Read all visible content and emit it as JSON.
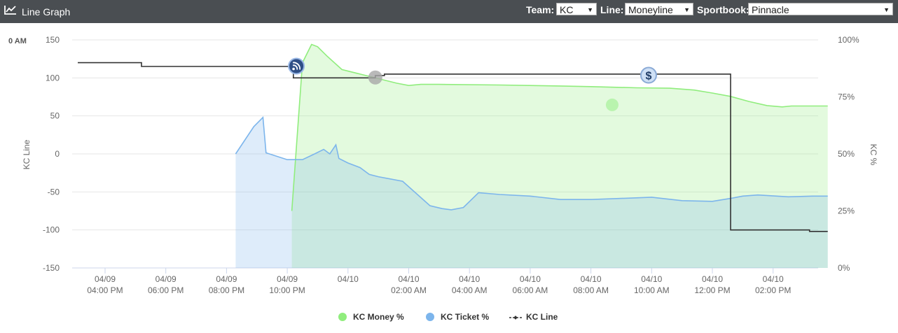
{
  "header": {
    "title": "Line Graph",
    "title_icon": "line-chart-icon",
    "team_label": "Team:",
    "team_value": "KC",
    "line_label": "Line:",
    "line_value": "Moneyline",
    "sportsbook_label": "Sportbook:",
    "sportsbook_value": "Pinnacle"
  },
  "corner_label": "0 AM",
  "chart_data": {
    "type": "line",
    "ylabel_left": "KC Line",
    "ylabel_right": "KC %",
    "y_left_ticks": [
      "150",
      "100",
      "50",
      "0",
      "-50",
      "-100",
      "-150"
    ],
    "y_right_ticks": [
      "100%",
      "75%",
      "50%",
      "25%",
      "0%"
    ],
    "ylim_left": [
      -150,
      150
    ],
    "ylim_right": [
      0,
      100
    ],
    "x_ticks": [
      {
        "date": "04/09",
        "time": "04:00 PM"
      },
      {
        "date": "04/09",
        "time": "06:00 PM"
      },
      {
        "date": "04/09",
        "time": "08:00 PM"
      },
      {
        "date": "04/09",
        "time": "10:00 PM"
      },
      {
        "date": "04/10",
        "time": ""
      },
      {
        "date": "04/10",
        "time": "02:00 AM"
      },
      {
        "date": "04/10",
        "time": "04:00 AM"
      },
      {
        "date": "04/10",
        "time": "06:00 AM"
      },
      {
        "date": "04/10",
        "time": "08:00 AM"
      },
      {
        "date": "04/10",
        "time": "10:00 AM"
      },
      {
        "date": "04/10",
        "time": "12:00 PM"
      },
      {
        "date": "04/10",
        "time": "02:00 PM"
      }
    ],
    "x_unit": "hours from 04/09 04:00 PM",
    "grid": true,
    "legend_position": "bottom-center",
    "colors": {
      "money": "#90ed7d",
      "ticket": "#7cb5ec",
      "line": "#333333"
    },
    "series": [
      {
        "name": "KC Line",
        "axis": "left",
        "step": true,
        "points": [
          [
            -0.9,
            120
          ],
          [
            1.2,
            120
          ],
          [
            1.2,
            115
          ],
          [
            6.2,
            115
          ],
          [
            6.2,
            100
          ],
          [
            8.9,
            100
          ],
          [
            8.9,
            103
          ],
          [
            9.2,
            103
          ],
          [
            9.2,
            105
          ],
          [
            20.6,
            105
          ],
          [
            20.6,
            -100
          ],
          [
            23.2,
            -100
          ],
          [
            23.2,
            -102
          ],
          [
            23.8,
            -102
          ]
        ]
      },
      {
        "name": "KC Money %",
        "axis": "right",
        "points": [
          [
            6.15,
            25
          ],
          [
            6.5,
            90
          ],
          [
            6.8,
            98
          ],
          [
            7.0,
            97
          ],
          [
            7.3,
            93
          ],
          [
            7.8,
            87
          ],
          [
            8.4,
            85
          ],
          [
            9.0,
            83
          ],
          [
            9.6,
            81
          ],
          [
            10.0,
            80
          ],
          [
            10.4,
            80.5
          ],
          [
            11.0,
            80.5
          ],
          [
            13.0,
            80.2
          ],
          [
            15.0,
            79.8
          ],
          [
            16.0,
            79.5
          ],
          [
            17.5,
            79
          ],
          [
            18.6,
            78.8
          ],
          [
            19.4,
            78
          ],
          [
            20.0,
            76.7
          ],
          [
            20.6,
            75.2
          ],
          [
            21.2,
            73
          ],
          [
            21.8,
            71.2
          ],
          [
            22.3,
            70.6
          ],
          [
            22.6,
            71
          ],
          [
            23.8,
            71
          ]
        ]
      },
      {
        "name": "KC Ticket %",
        "axis": "right",
        "points": [
          [
            4.3,
            50
          ],
          [
            4.9,
            62
          ],
          [
            5.2,
            66
          ],
          [
            5.3,
            50.5
          ],
          [
            6.0,
            47.5
          ],
          [
            6.5,
            47.5
          ],
          [
            6.9,
            50
          ],
          [
            7.2,
            52
          ],
          [
            7.4,
            50
          ],
          [
            7.6,
            54
          ],
          [
            7.7,
            48
          ],
          [
            8.0,
            46
          ],
          [
            8.4,
            44
          ],
          [
            8.7,
            41
          ],
          [
            9.0,
            40
          ],
          [
            9.8,
            38
          ],
          [
            10.7,
            27.3
          ],
          [
            11.1,
            26
          ],
          [
            11.4,
            25.5
          ],
          [
            11.8,
            26.5
          ],
          [
            12.3,
            33
          ],
          [
            13.0,
            32.2
          ],
          [
            14.0,
            31.5
          ],
          [
            15.0,
            30
          ],
          [
            16.0,
            30
          ],
          [
            17.0,
            30.5
          ],
          [
            18.0,
            31
          ],
          [
            19.0,
            29.5
          ],
          [
            20.0,
            29.2
          ],
          [
            20.6,
            30.5
          ],
          [
            21.0,
            31.5
          ],
          [
            21.5,
            32
          ],
          [
            22.5,
            31.2
          ],
          [
            23.3,
            31.5
          ],
          [
            23.8,
            31.5
          ]
        ]
      }
    ],
    "markers": [
      {
        "name": "rss-marker",
        "x": 6.3,
        "y": 88.5,
        "icon": "rss-icon"
      },
      {
        "name": "gray-marker",
        "x": 8.9,
        "y": 83.5,
        "icon": "circle-icon"
      },
      {
        "name": "dollar-marker",
        "x": 17.9,
        "y": 84.5,
        "icon": "dollar-icon"
      },
      {
        "name": "money-halo-marker",
        "x": 16.7,
        "y": 71.5,
        "icon": "circle-icon"
      }
    ]
  },
  "legend": [
    {
      "label": "KC Money %",
      "icon": "green-dot-icon",
      "color": "#90ed7d"
    },
    {
      "label": "KC Ticket %",
      "icon": "blue-dot-icon",
      "color": "#7cb5ec"
    },
    {
      "label": "KC Line",
      "icon": "line-marker-icon",
      "color": "#333333"
    }
  ]
}
